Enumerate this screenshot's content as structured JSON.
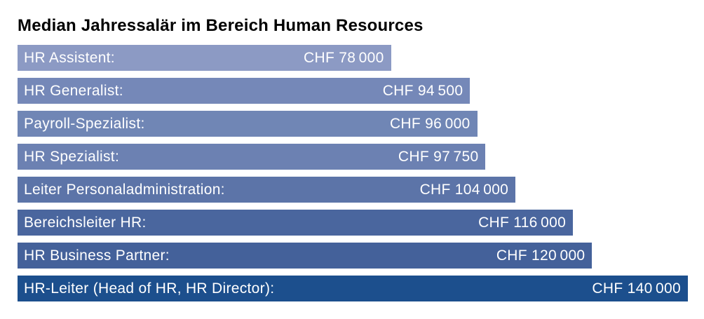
{
  "chart": {
    "title": "Median Jahressalär im Bereich Human Resources"
  },
  "chart_data": {
    "type": "bar",
    "orientation": "horizontal",
    "title": "Median Jahressalär im Bereich Human Resources",
    "xlabel": "",
    "ylabel": "",
    "currency": "CHF",
    "xlim": [
      0,
      140000
    ],
    "grid": false,
    "legend": false,
    "categories": [
      "HR Assistent:",
      "HR Generalist:",
      "Payroll-Spezialist:",
      "HR Spezialist:",
      "Leiter Personaladministration:",
      "Bereichsleiter HR:",
      "HR Business Partner:",
      "HR-Leiter (Head of HR, HR Director):"
    ],
    "values": [
      78000,
      94500,
      96000,
      97750,
      104000,
      116000,
      120000,
      140000
    ],
    "max_value": 140000,
    "rows": [
      {
        "label": "HR Assistent:",
        "value": 78000,
        "value_label": "CHF 78 000",
        "color": "#8C9AC4"
      },
      {
        "label": "HR Generalist:",
        "value": 94500,
        "value_label": "CHF 94 500",
        "color": "#7588B8"
      },
      {
        "label": "Payroll-Spezialist:",
        "value": 96000,
        "value_label": "CHF 96 000",
        "color": "#7086B5"
      },
      {
        "label": "HR Spezialist:",
        "value": 97750,
        "value_label": "CHF 97 750",
        "color": "#6C81B2"
      },
      {
        "label": "Leiter Personaladministration:",
        "value": 104000,
        "value_label": "CHF 104 000",
        "color": "#5C74A8"
      },
      {
        "label": "Bereichsleiter HR:",
        "value": 116000,
        "value_label": "CHF 116 000",
        "color": "#4A669E"
      },
      {
        "label": "HR Business Partner:",
        "value": 120000,
        "value_label": "CHF 120 000",
        "color": "#44619A"
      },
      {
        "label": "HR-Leiter (Head of HR, HR Director):",
        "value": 140000,
        "value_label": "CHF 140 000",
        "color": "#1C4F8D"
      }
    ]
  }
}
